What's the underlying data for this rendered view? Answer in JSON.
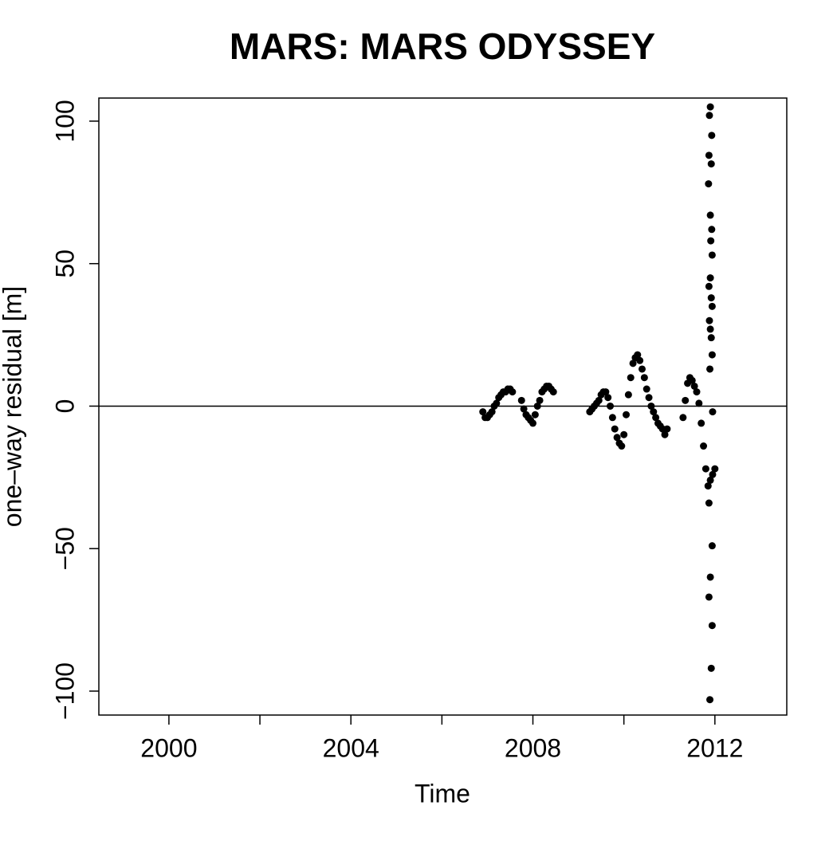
{
  "chart_data": {
    "type": "scatter",
    "title": "MARS: MARS ODYSSEY",
    "xlabel": "Time",
    "ylabel": "one–way residual [m]",
    "color": "#000000",
    "hline": 0,
    "xlim": [
      1998.46,
      2013.58
    ],
    "xticks": [
      2000,
      2004,
      2008,
      2012
    ],
    "xticks_unlabeled": [
      2002,
      2006,
      2010
    ],
    "ylim": [
      -108.4,
      108.1
    ],
    "yticks": [
      {
        "value": -100,
        "label": "−100"
      },
      {
        "value": -50,
        "label": "−50"
      },
      0,
      50,
      100
    ],
    "x": [
      2006.9,
      2006.95,
      2007.0,
      2007.05,
      2007.1,
      2007.15,
      2007.2,
      2007.25,
      2007.3,
      2007.35,
      2007.4,
      2007.45,
      2007.5,
      2007.55,
      2007.75,
      2007.8,
      2007.85,
      2007.9,
      2007.95,
      2008.0,
      2008.05,
      2008.1,
      2008.15,
      2008.2,
      2008.25,
      2008.3,
      2008.35,
      2008.4,
      2008.45,
      2009.25,
      2009.3,
      2009.35,
      2009.4,
      2009.45,
      2009.5,
      2009.55,
      2009.6,
      2009.65,
      2009.7,
      2009.75,
      2009.8,
      2009.85,
      2009.9,
      2009.95,
      2010.0,
      2010.05,
      2010.1,
      2010.15,
      2010.2,
      2010.25,
      2010.3,
      2010.35,
      2010.4,
      2010.45,
      2010.5,
      2010.55,
      2010.6,
      2010.65,
      2010.7,
      2010.75,
      2010.8,
      2010.85,
      2010.9,
      2010.95,
      2011.3,
      2011.35,
      2011.4,
      2011.45,
      2011.5,
      2011.55,
      2011.6,
      2011.65,
      2011.7,
      2011.75,
      2011.8,
      2011.85,
      2011.9,
      2011.95,
      2012.0,
      2011.9,
      2011.88,
      2011.93,
      2011.87,
      2011.92,
      2011.86,
      2011.9,
      2011.93,
      2011.91,
      2011.94,
      2011.9,
      2011.87,
      2011.92,
      2011.94,
      2011.88,
      2011.9,
      2011.92,
      2011.94,
      2011.89,
      2011.95,
      2011.87,
      2011.94,
      2011.9,
      2011.87,
      2011.94,
      2011.92,
      2011.89
    ],
    "values": [
      -2,
      -4,
      -4,
      -3,
      -2,
      0,
      1,
      3,
      4,
      5,
      5,
      6,
      6,
      5,
      2,
      -1,
      -3,
      -4,
      -5,
      -6,
      -3,
      0,
      2,
      5,
      6,
      7,
      7,
      6,
      5,
      -2,
      -1,
      0,
      1,
      2,
      4,
      5,
      5,
      3,
      0,
      -4,
      -8,
      -11,
      -13,
      -14,
      -10,
      -3,
      4,
      10,
      15,
      17,
      18,
      16,
      13,
      10,
      6,
      3,
      0,
      -2,
      -4,
      -6,
      -7,
      -8,
      -10,
      -8,
      -4,
      2,
      8,
      10,
      9,
      7,
      5,
      1,
      -6,
      -14,
      -22,
      -28,
      -26,
      -24,
      -22,
      105,
      102,
      95,
      88,
      85,
      78,
      67,
      62,
      58,
      53,
      45,
      42,
      38,
      35,
      30,
      27,
      24,
      18,
      13,
      -2,
      -34,
      -49,
      -60,
      -67,
      -77,
      -92,
      -103
    ]
  }
}
